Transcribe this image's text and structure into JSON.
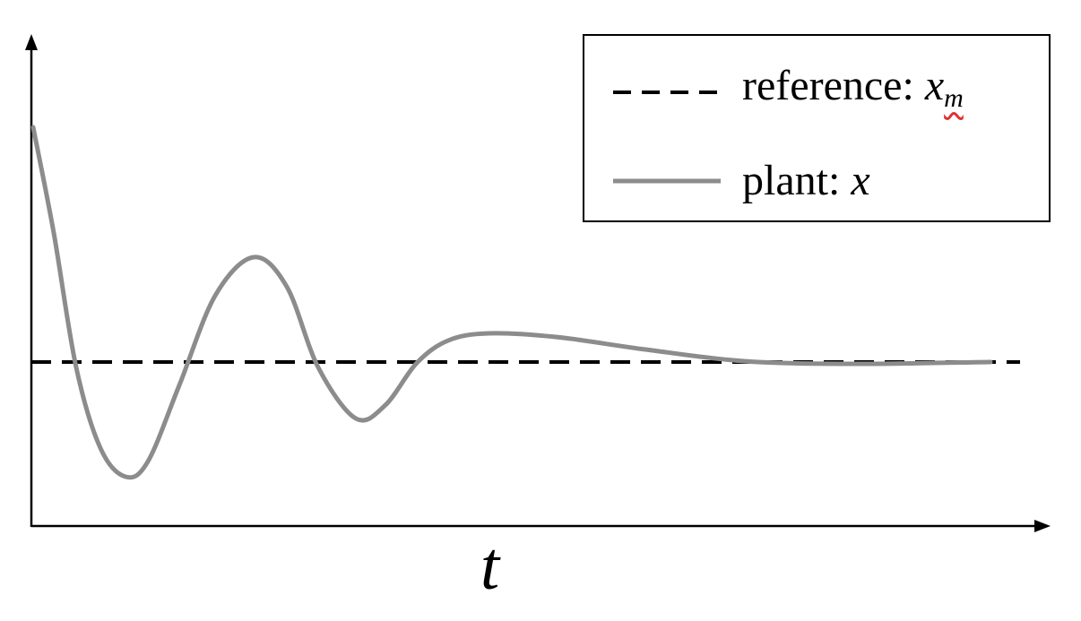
{
  "chart_data": {
    "type": "line",
    "title": "",
    "xlabel": "t",
    "ylabel": "",
    "grid": false,
    "legend_placement": "top-right",
    "reference": {
      "name": "reference: x_m",
      "style": "dashed",
      "color": "#000000",
      "value": 0
    },
    "plant": {
      "name": "plant: x",
      "style": "solid",
      "color": "#8c8c8c",
      "response": "damped oscillation settling to the reference"
    }
  },
  "legend": {
    "ref_prefix": "reference: ",
    "ref_symbol": "x",
    "ref_subscript": "m",
    "plant_prefix": "plant: ",
    "plant_symbol": "x"
  },
  "axes": {
    "xlabel": "t"
  },
  "colors": {
    "reference": "#000000",
    "plant": "#8c8c8c",
    "axis": "#000000"
  }
}
